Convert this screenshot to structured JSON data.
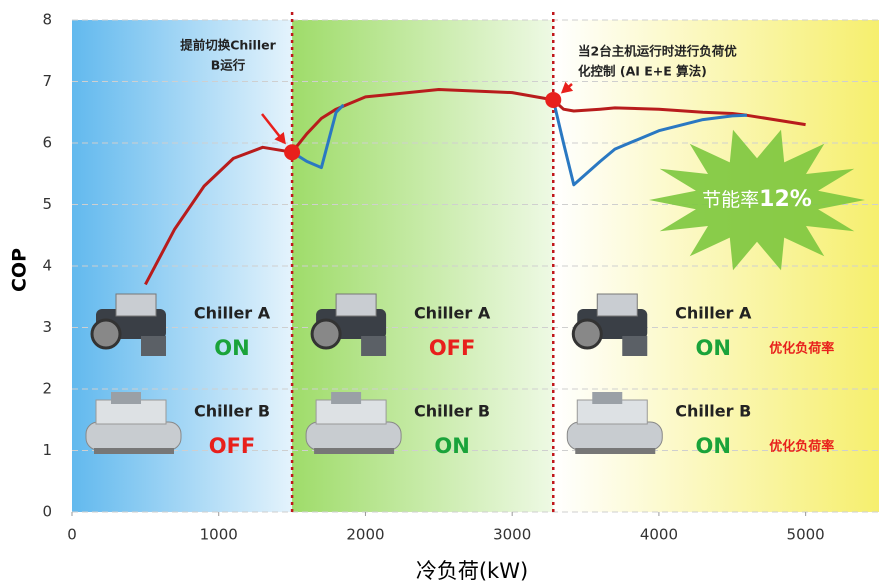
{
  "chart_data": {
    "type": "line",
    "ylabel": "COP",
    "xlabel": "冷负荷(kW)",
    "xlim": [
      0,
      5500
    ],
    "xticks": [
      0,
      1000,
      2000,
      3000,
      4000,
      5000
    ],
    "ylim": [
      0,
      8
    ],
    "yticks": [
      0,
      1,
      2,
      3,
      4,
      5,
      6,
      7,
      8
    ],
    "grid": true,
    "x": [
      500,
      700,
      900,
      1100,
      1300,
      1500,
      1600,
      1700,
      1800,
      1850,
      2000,
      2500,
      3000,
      3280,
      3350,
      3420,
      3600,
      3700,
      4000,
      4300,
      4500,
      4600,
      5000
    ],
    "series": [
      {
        "color": "#b81c1c",
        "values": [
          3.7,
          4.6,
          5.3,
          5.75,
          5.93,
          5.85,
          6.15,
          6.4,
          6.55,
          6.6,
          6.75,
          6.87,
          6.82,
          6.7,
          6.55,
          6.52,
          6.55,
          6.57,
          6.55,
          6.5,
          6.48,
          6.45,
          6.3
        ]
      },
      {
        "color": "#2a78c2",
        "values": [
          null,
          null,
          null,
          null,
          null,
          5.85,
          5.7,
          5.6,
          6.5,
          6.62,
          null,
          null,
          null,
          6.7,
          6.0,
          5.32,
          5.7,
          5.9,
          6.2,
          6.38,
          6.44,
          6.45,
          null
        ]
      }
    ],
    "annotations": [
      {
        "lines": [
          "提前切换Chiller",
          "B运行"
        ],
        "x": 1500,
        "y": 5.85,
        "color": "#e8201c"
      },
      {
        "lines": [
          "当2台主机运行时进行负荷优",
          "化控制 (AI E+E 算法)"
        ],
        "x": 3280,
        "y": 6.7,
        "color": "#e8201c"
      }
    ],
    "regions": [
      {
        "from": 0,
        "to": 1500,
        "colors": [
          "#62b9ee",
          "#e4f3fc"
        ],
        "items": [
          {
            "name": "Chiller A",
            "status": "ON",
            "status_color": "#1aa33a"
          },
          {
            "name": "Chiller B",
            "status": "OFF",
            "status_color": "#e8201c"
          }
        ]
      },
      {
        "from": 1500,
        "to": 3280,
        "colors": [
          "#9fdc6a",
          "#eef9e4"
        ],
        "items": [
          {
            "name": "Chiller A",
            "status": "OFF",
            "status_color": "#e8201c"
          },
          {
            "name": "Chiller B",
            "status": "ON",
            "status_color": "#1aa33a"
          }
        ]
      },
      {
        "from": 3280,
        "to": 5500,
        "colors": [
          "#ffffff",
          "#f6ef6e"
        ],
        "items": [
          {
            "name": "Chiller A",
            "status": "ON",
            "status_color": "#1aa33a",
            "note": "优化负荷率"
          },
          {
            "name": "Chiller B",
            "status": "ON",
            "status_color": "#1aa33a",
            "note": "优化负荷率"
          }
        ]
      }
    ],
    "divider_color": "#c0161b",
    "badge": {
      "text": "节能率",
      "value": "12%",
      "color": "#7cc63e"
    }
  }
}
